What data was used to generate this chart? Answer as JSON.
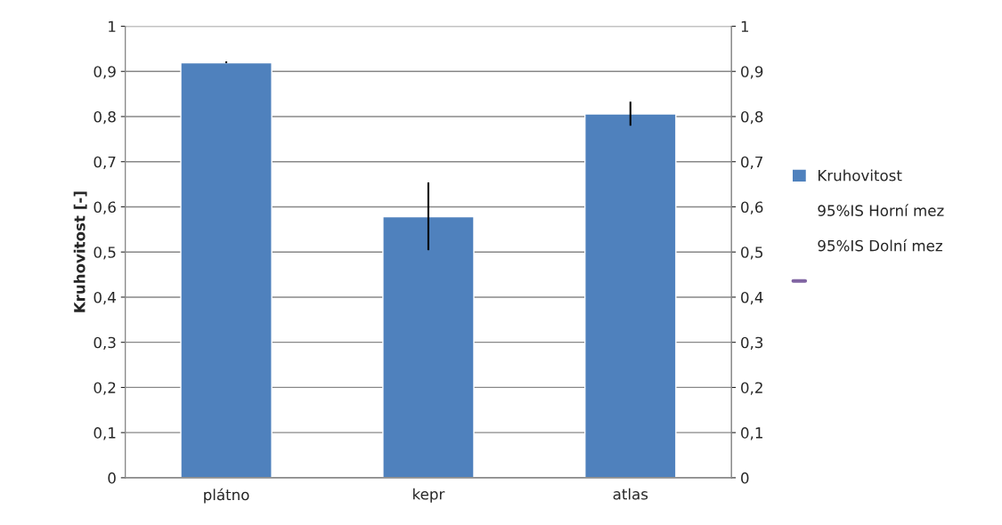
{
  "chart_data": {
    "type": "bar",
    "ylabel": "Kruhovitost [-]",
    "categories": [
      "plátno",
      "kepr",
      "atlas"
    ],
    "series": [
      {
        "name": "Kruhovitost",
        "color": "#4f81bd",
        "values": [
          0.919,
          0.578,
          0.806
        ],
        "errors": [
          [
            0.918,
            0.922
          ],
          [
            0.504,
            0.654
          ],
          [
            0.78,
            0.833
          ]
        ]
      },
      {
        "name": "95%IS Horní mez",
        "type": "line",
        "values": [
          null,
          null,
          null
        ]
      },
      {
        "name": "95%IS Dolní mez",
        "type": "line",
        "values": [
          null,
          null,
          null
        ]
      },
      {
        "type": "line",
        "color": "#8064a2",
        "values": [
          null,
          null,
          null
        ]
      }
    ],
    "ylim": [
      0,
      1
    ],
    "yticks": [
      0,
      {
        "value": 0.1,
        "label": "0,1"
      },
      {
        "value": 0.2,
        "label": "0,2"
      },
      {
        "value": 0.3,
        "label": "0,3"
      },
      {
        "value": 0.4,
        "label": "0,4"
      },
      {
        "value": 0.5,
        "label": "0,5"
      },
      {
        "value": 0.6,
        "label": "0,6"
      },
      {
        "value": 0.7,
        "label": "0,7"
      },
      {
        "value": 0.8,
        "label": "0,8"
      },
      {
        "value": 0.9,
        "label": "0,9"
      },
      1
    ],
    "y2lim": [
      0,
      1
    ],
    "y2ticks": [
      0,
      {
        "value": 0.1,
        "label": "0,1"
      },
      {
        "value": 0.2,
        "label": "0,2"
      },
      {
        "value": 0.3,
        "label": "0,3"
      },
      {
        "value": 0.4,
        "label": "0,4"
      },
      {
        "value": 0.5,
        "label": "0,5"
      },
      {
        "value": 0.6,
        "label": "0,6"
      },
      {
        "value": 0.7,
        "label": "0,7"
      },
      {
        "value": 0.8,
        "label": "0,8"
      },
      {
        "value": 0.9,
        "label": "0,9"
      },
      1
    ],
    "grid": "y",
    "legend": "right"
  }
}
